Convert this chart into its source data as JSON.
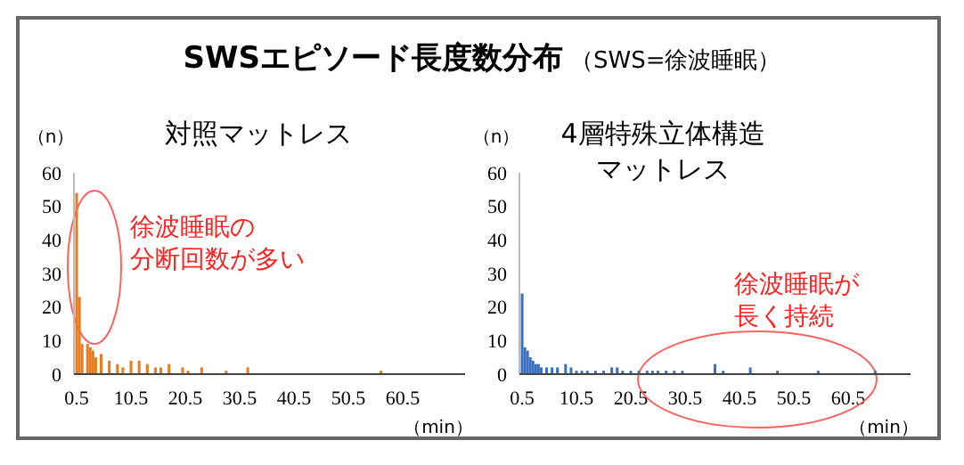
{
  "chart_data": [
    {
      "type": "other",
      "title": "SWSエピソード長度数分布",
      "subtitle": "（SWS=徐波睡眠）"
    },
    {
      "type": "bar",
      "title": "対照マットレス",
      "ylabel": "（n）",
      "xlabel": "（min）",
      "color": "#e87b1f",
      "xlim": [
        0,
        72
      ],
      "xticks": [
        0.5,
        10.5,
        20.5,
        30.5,
        40.5,
        50.5,
        60.5
      ],
      "ylim": [
        0,
        60
      ],
      "yticks": [
        0,
        10,
        20,
        30,
        40,
        50,
        60
      ],
      "grid": false,
      "annotations": [
        "徐波睡眠の分断回数が多い"
      ],
      "x": [
        0.5,
        1,
        1.5,
        2.5,
        3,
        3.5,
        4,
        5,
        6.5,
        8,
        9,
        10.5,
        12,
        13.5,
        15,
        16,
        17.5,
        20,
        21,
        23.5,
        28,
        32,
        56.5
      ],
      "values": [
        54,
        23,
        9,
        9,
        8,
        7,
        5,
        6,
        4,
        3,
        2,
        4,
        4,
        3,
        2,
        2,
        3,
        2,
        1,
        2,
        1,
        2,
        1
      ]
    },
    {
      "type": "bar",
      "title": "4層特殊立体構造マットレス",
      "ylabel": "（n）",
      "xlabel": "（min）",
      "color": "#3a6fc4",
      "xlim": [
        0,
        72
      ],
      "xticks": [
        0.5,
        10.5,
        20.5,
        30.5,
        40.5,
        50.5,
        60.5
      ],
      "ylim": [
        0,
        60
      ],
      "yticks": [
        0,
        10,
        20,
        30,
        40,
        50,
        60
      ],
      "grid": false,
      "annotations": [
        "徐波睡眠が長く持続"
      ],
      "x": [
        0.5,
        1,
        1.5,
        2,
        2.5,
        3,
        3.5,
        4,
        5,
        6,
        7,
        8.5,
        9.5,
        10.5,
        11.5,
        12.5,
        14,
        15.5,
        17,
        18,
        19,
        20.5,
        22,
        23.5,
        24.5,
        25.5,
        27,
        28.5,
        30,
        36,
        37.5,
        42.5,
        47.5,
        55,
        65.5
      ],
      "values": [
        24,
        8,
        7,
        5,
        4,
        3,
        3,
        2,
        2,
        2,
        2,
        3,
        2,
        1,
        1,
        1,
        1,
        1,
        2,
        2,
        1,
        1,
        1,
        1,
        1,
        1,
        1,
        1,
        1,
        3,
        1,
        2,
        1,
        1,
        1
      ]
    }
  ]
}
